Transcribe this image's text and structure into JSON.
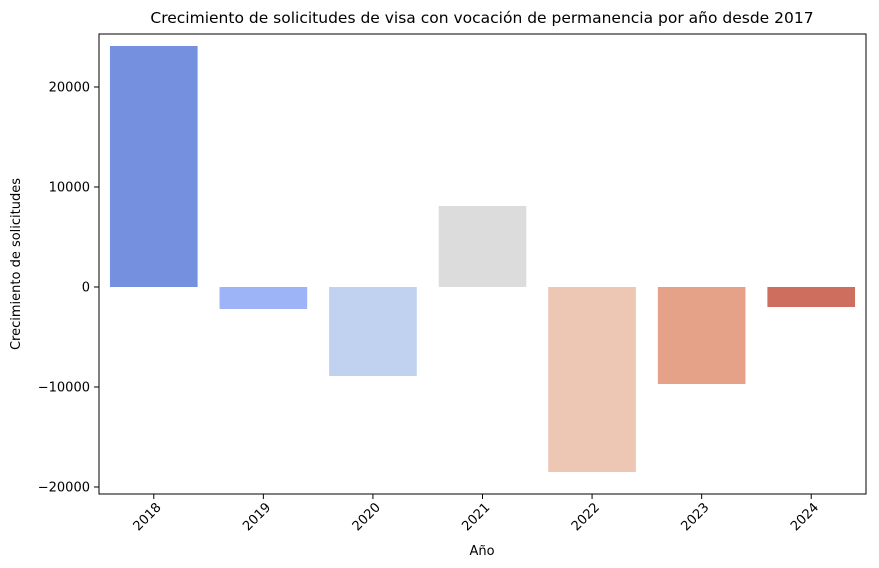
{
  "chart_data": {
    "type": "bar",
    "title": "Crecimiento de solicitudes de visa con vocación de permanencia por año desde 2017",
    "xlabel": "Año",
    "ylabel": "Crecimiento de solicitudes",
    "categories": [
      "2018",
      "2019",
      "2020",
      "2021",
      "2022",
      "2023",
      "2024"
    ],
    "values": [
      24100,
      -2200,
      -8900,
      8100,
      -18500,
      -9700,
      -2000
    ],
    "colors": [
      "#7590DE",
      "#9DB5F6",
      "#C1D2F1",
      "#DCDCDC",
      "#EDC7B4",
      "#E5A288",
      "#CE6E5E"
    ],
    "ylim": [
      -20700,
      25300
    ],
    "yticks": [
      -20000,
      -10000,
      0,
      10000,
      20000
    ],
    "ytick_labels": [
      "−20000",
      "−10000",
      "0",
      "10000",
      "20000"
    ],
    "grid": false,
    "legend": "none",
    "xtick_rotation": 45
  }
}
